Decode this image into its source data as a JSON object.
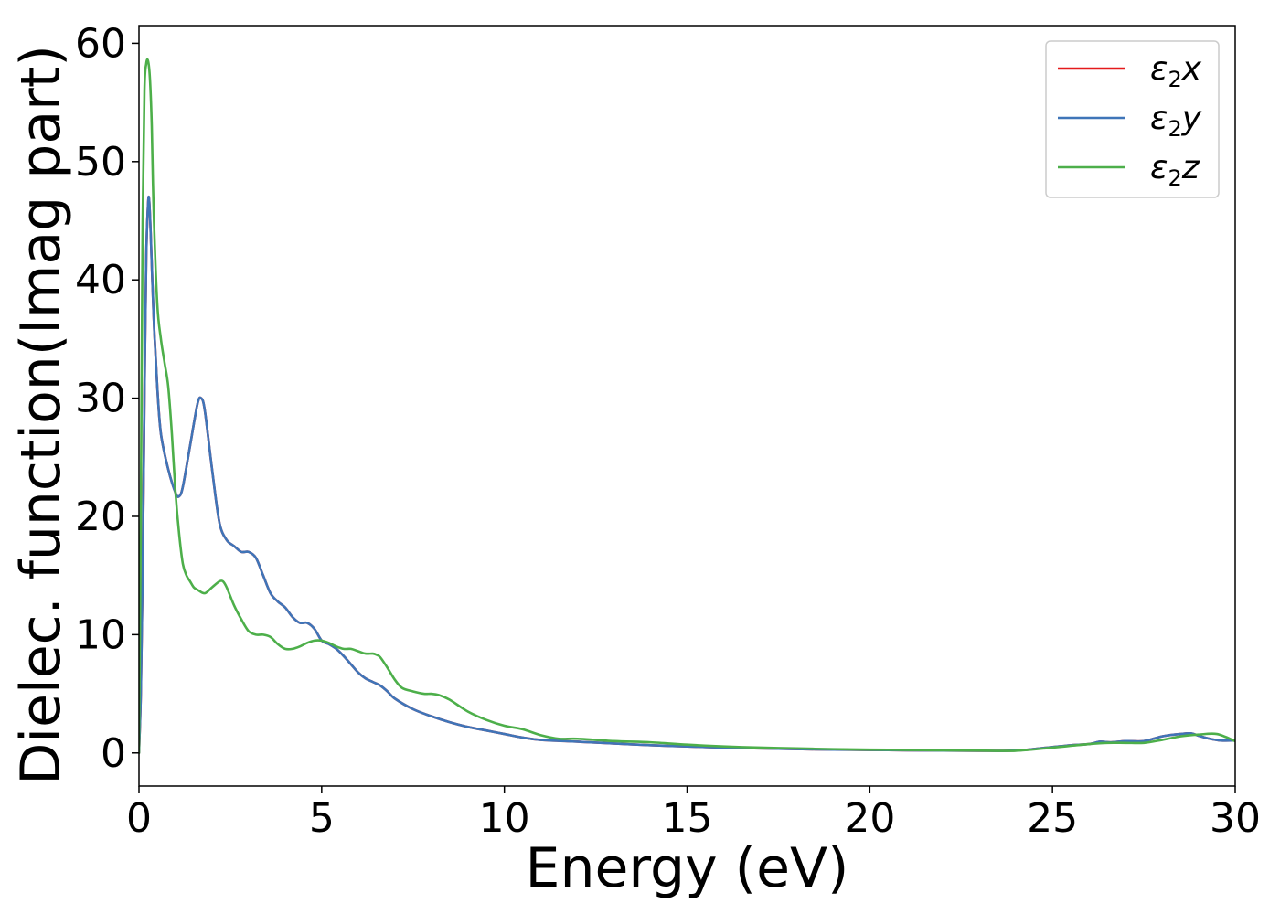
{
  "chart_data": {
    "type": "line",
    "title": "",
    "xlabel": "Energy (eV)",
    "ylabel": "Dielec. function(Imag part)",
    "xlim": [
      0,
      30
    ],
    "ylim": [
      -2.8,
      61.5
    ],
    "xticks": [
      0,
      5,
      10,
      15,
      20,
      25,
      30
    ],
    "xtick_labels": [
      "0",
      "5",
      "10",
      "15",
      "20",
      "25",
      "30"
    ],
    "yticks": [
      0,
      10,
      20,
      30,
      40,
      50,
      60
    ],
    "ytick_labels": [
      "0",
      "10",
      "20",
      "30",
      "40",
      "50",
      "60"
    ],
    "grid": false,
    "legend_position": "top-right",
    "series": [
      {
        "name": "ε2x",
        "legend_base": "ε",
        "legend_sub": "2",
        "legend_tail": "x",
        "color": "#e41a1c",
        "x": [
          0,
          0.05,
          0.1,
          0.15,
          0.2,
          0.25,
          0.28,
          0.32,
          0.4,
          0.5,
          0.6,
          0.8,
          1.0,
          1.1,
          1.2,
          1.4,
          1.6,
          1.7,
          1.8,
          2.0,
          2.2,
          2.4,
          2.6,
          2.8,
          3.0,
          3.2,
          3.4,
          3.6,
          3.8,
          4.0,
          4.2,
          4.4,
          4.6,
          4.8,
          5.0,
          5.2,
          5.4,
          5.6,
          5.8,
          6.0,
          6.2,
          6.4,
          6.6,
          6.8,
          7.0,
          7.5,
          8.0,
          8.5,
          9.0,
          9.5,
          10.0,
          10.5,
          11.0,
          12.0,
          13.0,
          14.0,
          15.0,
          16.0,
          17.0,
          18.0,
          19.0,
          20.0,
          21.0,
          22.0,
          23.0,
          24.0,
          25.0,
          25.5,
          26.0,
          26.3,
          26.6,
          27.0,
          27.5,
          28.0,
          28.5,
          28.8,
          29.0,
          29.3,
          29.6,
          30.0
        ],
        "values": [
          0,
          5,
          15,
          30,
          42,
          46.5,
          46.7,
          44,
          37,
          31,
          27,
          24,
          22,
          21.7,
          22.5,
          26,
          29.5,
          30,
          29,
          24,
          19.5,
          18,
          17.5,
          17,
          17,
          16.5,
          15,
          13.5,
          12.8,
          12.3,
          11.5,
          11,
          11,
          10.5,
          9.5,
          9.2,
          8.8,
          8.2,
          7.5,
          6.8,
          6.3,
          6,
          5.7,
          5.2,
          4.6,
          3.7,
          3.1,
          2.6,
          2.2,
          1.9,
          1.6,
          1.3,
          1.1,
          0.95,
          0.8,
          0.65,
          0.55,
          0.45,
          0.38,
          0.32,
          0.28,
          0.25,
          0.22,
          0.2,
          0.18,
          0.2,
          0.5,
          0.65,
          0.75,
          0.95,
          0.9,
          1.0,
          1.0,
          1.4,
          1.6,
          1.65,
          1.45,
          1.2,
          1.05,
          1.05
        ]
      },
      {
        "name": "ε2y",
        "legend_base": "ε",
        "legend_sub": "2",
        "legend_tail": "y",
        "color": "#3f75b8",
        "x": [
          0,
          0.05,
          0.1,
          0.15,
          0.2,
          0.25,
          0.28,
          0.32,
          0.4,
          0.5,
          0.6,
          0.8,
          1.0,
          1.1,
          1.2,
          1.4,
          1.6,
          1.7,
          1.8,
          2.0,
          2.2,
          2.4,
          2.6,
          2.8,
          3.0,
          3.2,
          3.4,
          3.6,
          3.8,
          4.0,
          4.2,
          4.4,
          4.6,
          4.8,
          5.0,
          5.2,
          5.4,
          5.6,
          5.8,
          6.0,
          6.2,
          6.4,
          6.6,
          6.8,
          7.0,
          7.5,
          8.0,
          8.5,
          9.0,
          9.5,
          10.0,
          10.5,
          11.0,
          12.0,
          13.0,
          14.0,
          15.0,
          16.0,
          17.0,
          18.0,
          19.0,
          20.0,
          21.0,
          22.0,
          23.0,
          24.0,
          25.0,
          25.5,
          26.0,
          26.3,
          26.6,
          27.0,
          27.5,
          28.0,
          28.5,
          28.8,
          29.0,
          29.3,
          29.6,
          30.0
        ],
        "values": [
          0,
          5,
          15,
          30,
          42,
          46.5,
          46.7,
          44,
          37,
          31,
          27,
          24,
          22,
          21.7,
          22.5,
          26,
          29.5,
          30,
          29,
          24,
          19.5,
          18,
          17.5,
          17,
          17,
          16.5,
          15,
          13.5,
          12.8,
          12.3,
          11.5,
          11,
          11,
          10.5,
          9.5,
          9.2,
          8.8,
          8.2,
          7.5,
          6.8,
          6.3,
          6,
          5.7,
          5.2,
          4.6,
          3.7,
          3.1,
          2.6,
          2.2,
          1.9,
          1.6,
          1.3,
          1.1,
          0.95,
          0.8,
          0.65,
          0.55,
          0.45,
          0.38,
          0.32,
          0.28,
          0.25,
          0.22,
          0.2,
          0.18,
          0.2,
          0.5,
          0.65,
          0.75,
          0.95,
          0.9,
          1.0,
          1.0,
          1.4,
          1.6,
          1.65,
          1.45,
          1.2,
          1.05,
          1.05
        ]
      },
      {
        "name": "ε2z",
        "legend_base": "ε",
        "legend_sub": "2",
        "legend_tail": "z",
        "color": "#4daf4a",
        "x": [
          0,
          0.05,
          0.1,
          0.15,
          0.2,
          0.25,
          0.3,
          0.35,
          0.4,
          0.5,
          0.6,
          0.7,
          0.8,
          0.9,
          1.0,
          1.1,
          1.2,
          1.3,
          1.4,
          1.5,
          1.6,
          1.8,
          2.0,
          2.2,
          2.3,
          2.4,
          2.6,
          2.8,
          3.0,
          3.2,
          3.4,
          3.6,
          3.8,
          4.0,
          4.2,
          4.4,
          4.6,
          4.8,
          5.0,
          5.2,
          5.4,
          5.6,
          5.8,
          6.0,
          6.2,
          6.4,
          6.5,
          6.6,
          6.8,
          7.0,
          7.2,
          7.5,
          7.8,
          8.0,
          8.2,
          8.5,
          9.0,
          9.5,
          10.0,
          10.5,
          11.0,
          11.5,
          12.0,
          13.0,
          14.0,
          15.0,
          16.0,
          17.0,
          18.0,
          19.0,
          20.0,
          21.0,
          22.0,
          23.0,
          24.0,
          25.0,
          25.5,
          26.0,
          26.5,
          27.0,
          27.5,
          28.0,
          28.5,
          29.0,
          29.5,
          30.0
        ],
        "values": [
          0,
          20,
          45,
          56,
          58.3,
          58.5,
          57,
          53,
          46,
          38,
          35,
          33,
          31,
          27,
          22,
          18.5,
          16,
          15,
          14.5,
          14,
          13.8,
          13.5,
          14,
          14.5,
          14.5,
          14,
          12.5,
          11.3,
          10.3,
          10,
          10,
          9.8,
          9.2,
          8.8,
          8.8,
          9,
          9.3,
          9.5,
          9.5,
          9.3,
          9,
          8.8,
          8.8,
          8.6,
          8.4,
          8.4,
          8.3,
          8.1,
          7.2,
          6.2,
          5.5,
          5.2,
          5.0,
          5.0,
          4.9,
          4.5,
          3.5,
          2.8,
          2.3,
          2.0,
          1.5,
          1.2,
          1.2,
          1.0,
          0.9,
          0.7,
          0.55,
          0.45,
          0.38,
          0.32,
          0.28,
          0.25,
          0.22,
          0.2,
          0.18,
          0.45,
          0.6,
          0.75,
          0.85,
          0.85,
          0.85,
          1.1,
          1.4,
          1.55,
          1.6,
          1.0
        ]
      }
    ]
  }
}
